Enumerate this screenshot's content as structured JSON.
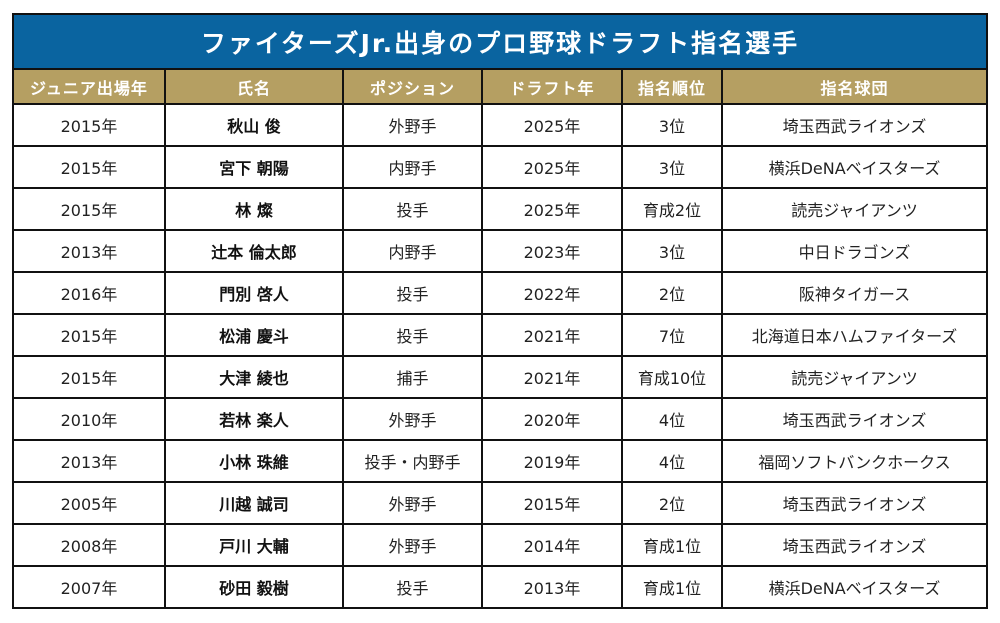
{
  "title": "ファイターズJr.出身のプロ野球ドラフト指名選手",
  "colors": {
    "title_bg": "#0a64a0",
    "header_bg": "#b59f62",
    "border": "#111111"
  },
  "columns": [
    "ジュニア出場年",
    "氏名",
    "ポジション",
    "ドラフト年",
    "指名順位",
    "指名球団"
  ],
  "rows": [
    {
      "junior_year": "2015年",
      "name": "秋山 俊",
      "position": "外野手",
      "draft_year": "2025年",
      "rank": "3位",
      "team": "埼玉西武ライオンズ"
    },
    {
      "junior_year": "2015年",
      "name": "宮下 朝陽",
      "position": "内野手",
      "draft_year": "2025年",
      "rank": "3位",
      "team": "横浜DeNAベイスターズ"
    },
    {
      "junior_year": "2015年",
      "name": "林 燦",
      "position": "投手",
      "draft_year": "2025年",
      "rank": "育成2位",
      "team": "読売ジャイアンツ"
    },
    {
      "junior_year": "2013年",
      "name": "辻本 倫太郎",
      "position": "内野手",
      "draft_year": "2023年",
      "rank": "3位",
      "team": "中日ドラゴンズ"
    },
    {
      "junior_year": "2016年",
      "name": "門別 啓人",
      "position": "投手",
      "draft_year": "2022年",
      "rank": "2位",
      "team": "阪神タイガース"
    },
    {
      "junior_year": "2015年",
      "name": "松浦 慶斗",
      "position": "投手",
      "draft_year": "2021年",
      "rank": "7位",
      "team": "北海道日本ハムファイターズ"
    },
    {
      "junior_year": "2015年",
      "name": "大津 綾也",
      "position": "捕手",
      "draft_year": "2021年",
      "rank": "育成10位",
      "team": "読売ジャイアンツ"
    },
    {
      "junior_year": "2010年",
      "name": "若林 楽人",
      "position": "外野手",
      "draft_year": "2020年",
      "rank": "4位",
      "team": "埼玉西武ライオンズ"
    },
    {
      "junior_year": "2013年",
      "name": "小林 珠維",
      "position": "投手・内野手",
      "draft_year": "2019年",
      "rank": "4位",
      "team": "福岡ソフトバンクホークス"
    },
    {
      "junior_year": "2005年",
      "name": "川越 誠司",
      "position": "外野手",
      "draft_year": "2015年",
      "rank": "2位",
      "team": "埼玉西武ライオンズ"
    },
    {
      "junior_year": "2008年",
      "name": "戸川 大輔",
      "position": "外野手",
      "draft_year": "2014年",
      "rank": "育成1位",
      "team": "埼玉西武ライオンズ"
    },
    {
      "junior_year": "2007年",
      "name": "砂田 毅樹",
      "position": "投手",
      "draft_year": "2013年",
      "rank": "育成1位",
      "team": "横浜DeNAベイスターズ"
    }
  ]
}
